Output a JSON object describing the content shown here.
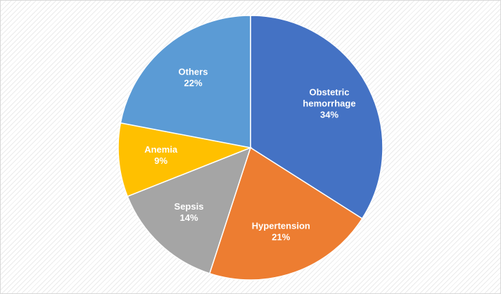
{
  "chart_data": {
    "type": "pie",
    "title": "",
    "start_angle_deg": 0,
    "direction": "clockwise",
    "legend": "none",
    "slices": [
      {
        "label_lines": [
          "Obstetric",
          "hemorrhage"
        ],
        "label": "Obstetric hemorrhage",
        "value": 34,
        "value_label": "34%",
        "color": "#4472C4",
        "label_color": "#ffffff"
      },
      {
        "label_lines": [
          "Hypertension"
        ],
        "label": "Hypertension",
        "value": 21,
        "value_label": "21%",
        "color": "#ED7D31",
        "label_color": "#ffffff"
      },
      {
        "label_lines": [
          "Sepsis"
        ],
        "label": "Sepsis",
        "value": 14,
        "value_label": "14%",
        "color": "#A5A5A5",
        "label_color": "#ffffff"
      },
      {
        "label_lines": [
          "Anemia"
        ],
        "label": "Anemia",
        "value": 9,
        "value_label": "9%",
        "color": "#FFC000",
        "label_color": "#ffffff"
      },
      {
        "label_lines": [
          "Others"
        ],
        "label": "Others",
        "value": 22,
        "value_label": "22%",
        "color": "#5B9BD5",
        "label_color": "#ffffff"
      }
    ]
  }
}
